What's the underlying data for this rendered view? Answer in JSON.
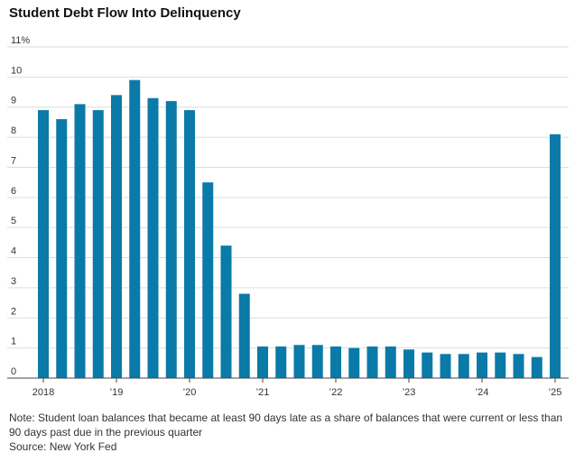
{
  "chart_data": {
    "type": "bar",
    "title": "Student Debt Flow Into Delinquency",
    "color": "#0a7aa8",
    "ylim": [
      0,
      11
    ],
    "y_ticks": [
      0,
      1,
      2,
      3,
      4,
      5,
      6,
      7,
      8,
      9,
      10,
      11
    ],
    "y_tick_labels": [
      "0",
      "1",
      "2",
      "3",
      "4",
      "5",
      "6",
      "7",
      "8",
      "9",
      "10",
      "11%"
    ],
    "x_tick_labels": [
      {
        "label": "2018",
        "index": 0
      },
      {
        "label": "’19",
        "index": 4
      },
      {
        "label": "’20",
        "index": 8
      },
      {
        "label": "’21",
        "index": 12
      },
      {
        "label": "’22",
        "index": 16
      },
      {
        "label": "’23",
        "index": 20
      },
      {
        "label": "’24",
        "index": 24
      },
      {
        "label": "’25",
        "index": 28
      }
    ],
    "categories": [
      "2018 Q1",
      "2018 Q2",
      "2018 Q3",
      "2018 Q4",
      "2019 Q1",
      "2019 Q2",
      "2019 Q3",
      "2019 Q4",
      "2020 Q1",
      "2020 Q2",
      "2020 Q3",
      "2020 Q4",
      "2021 Q1",
      "2021 Q2",
      "2021 Q3",
      "2021 Q4",
      "2022 Q1",
      "2022 Q2",
      "2022 Q3",
      "2022 Q4",
      "2023 Q1",
      "2023 Q2",
      "2023 Q3",
      "2023 Q4",
      "2024 Q1",
      "2024 Q2",
      "2024 Q3",
      "2024 Q4",
      "2025 Q1"
    ],
    "values": [
      8.9,
      8.6,
      9.1,
      8.9,
      9.4,
      9.9,
      9.3,
      9.2,
      8.9,
      6.5,
      4.4,
      2.8,
      1.05,
      1.05,
      1.1,
      1.1,
      1.05,
      1.0,
      1.05,
      1.05,
      0.95,
      0.85,
      0.8,
      0.8,
      0.85,
      0.85,
      0.8,
      0.7,
      8.1
    ],
    "grid": true
  },
  "note": "Note: Student loan balances that became at least 90 days late as a share of balances that were current or less than 90 days past due in the previous quarter",
  "source": "Source: New York Fed"
}
